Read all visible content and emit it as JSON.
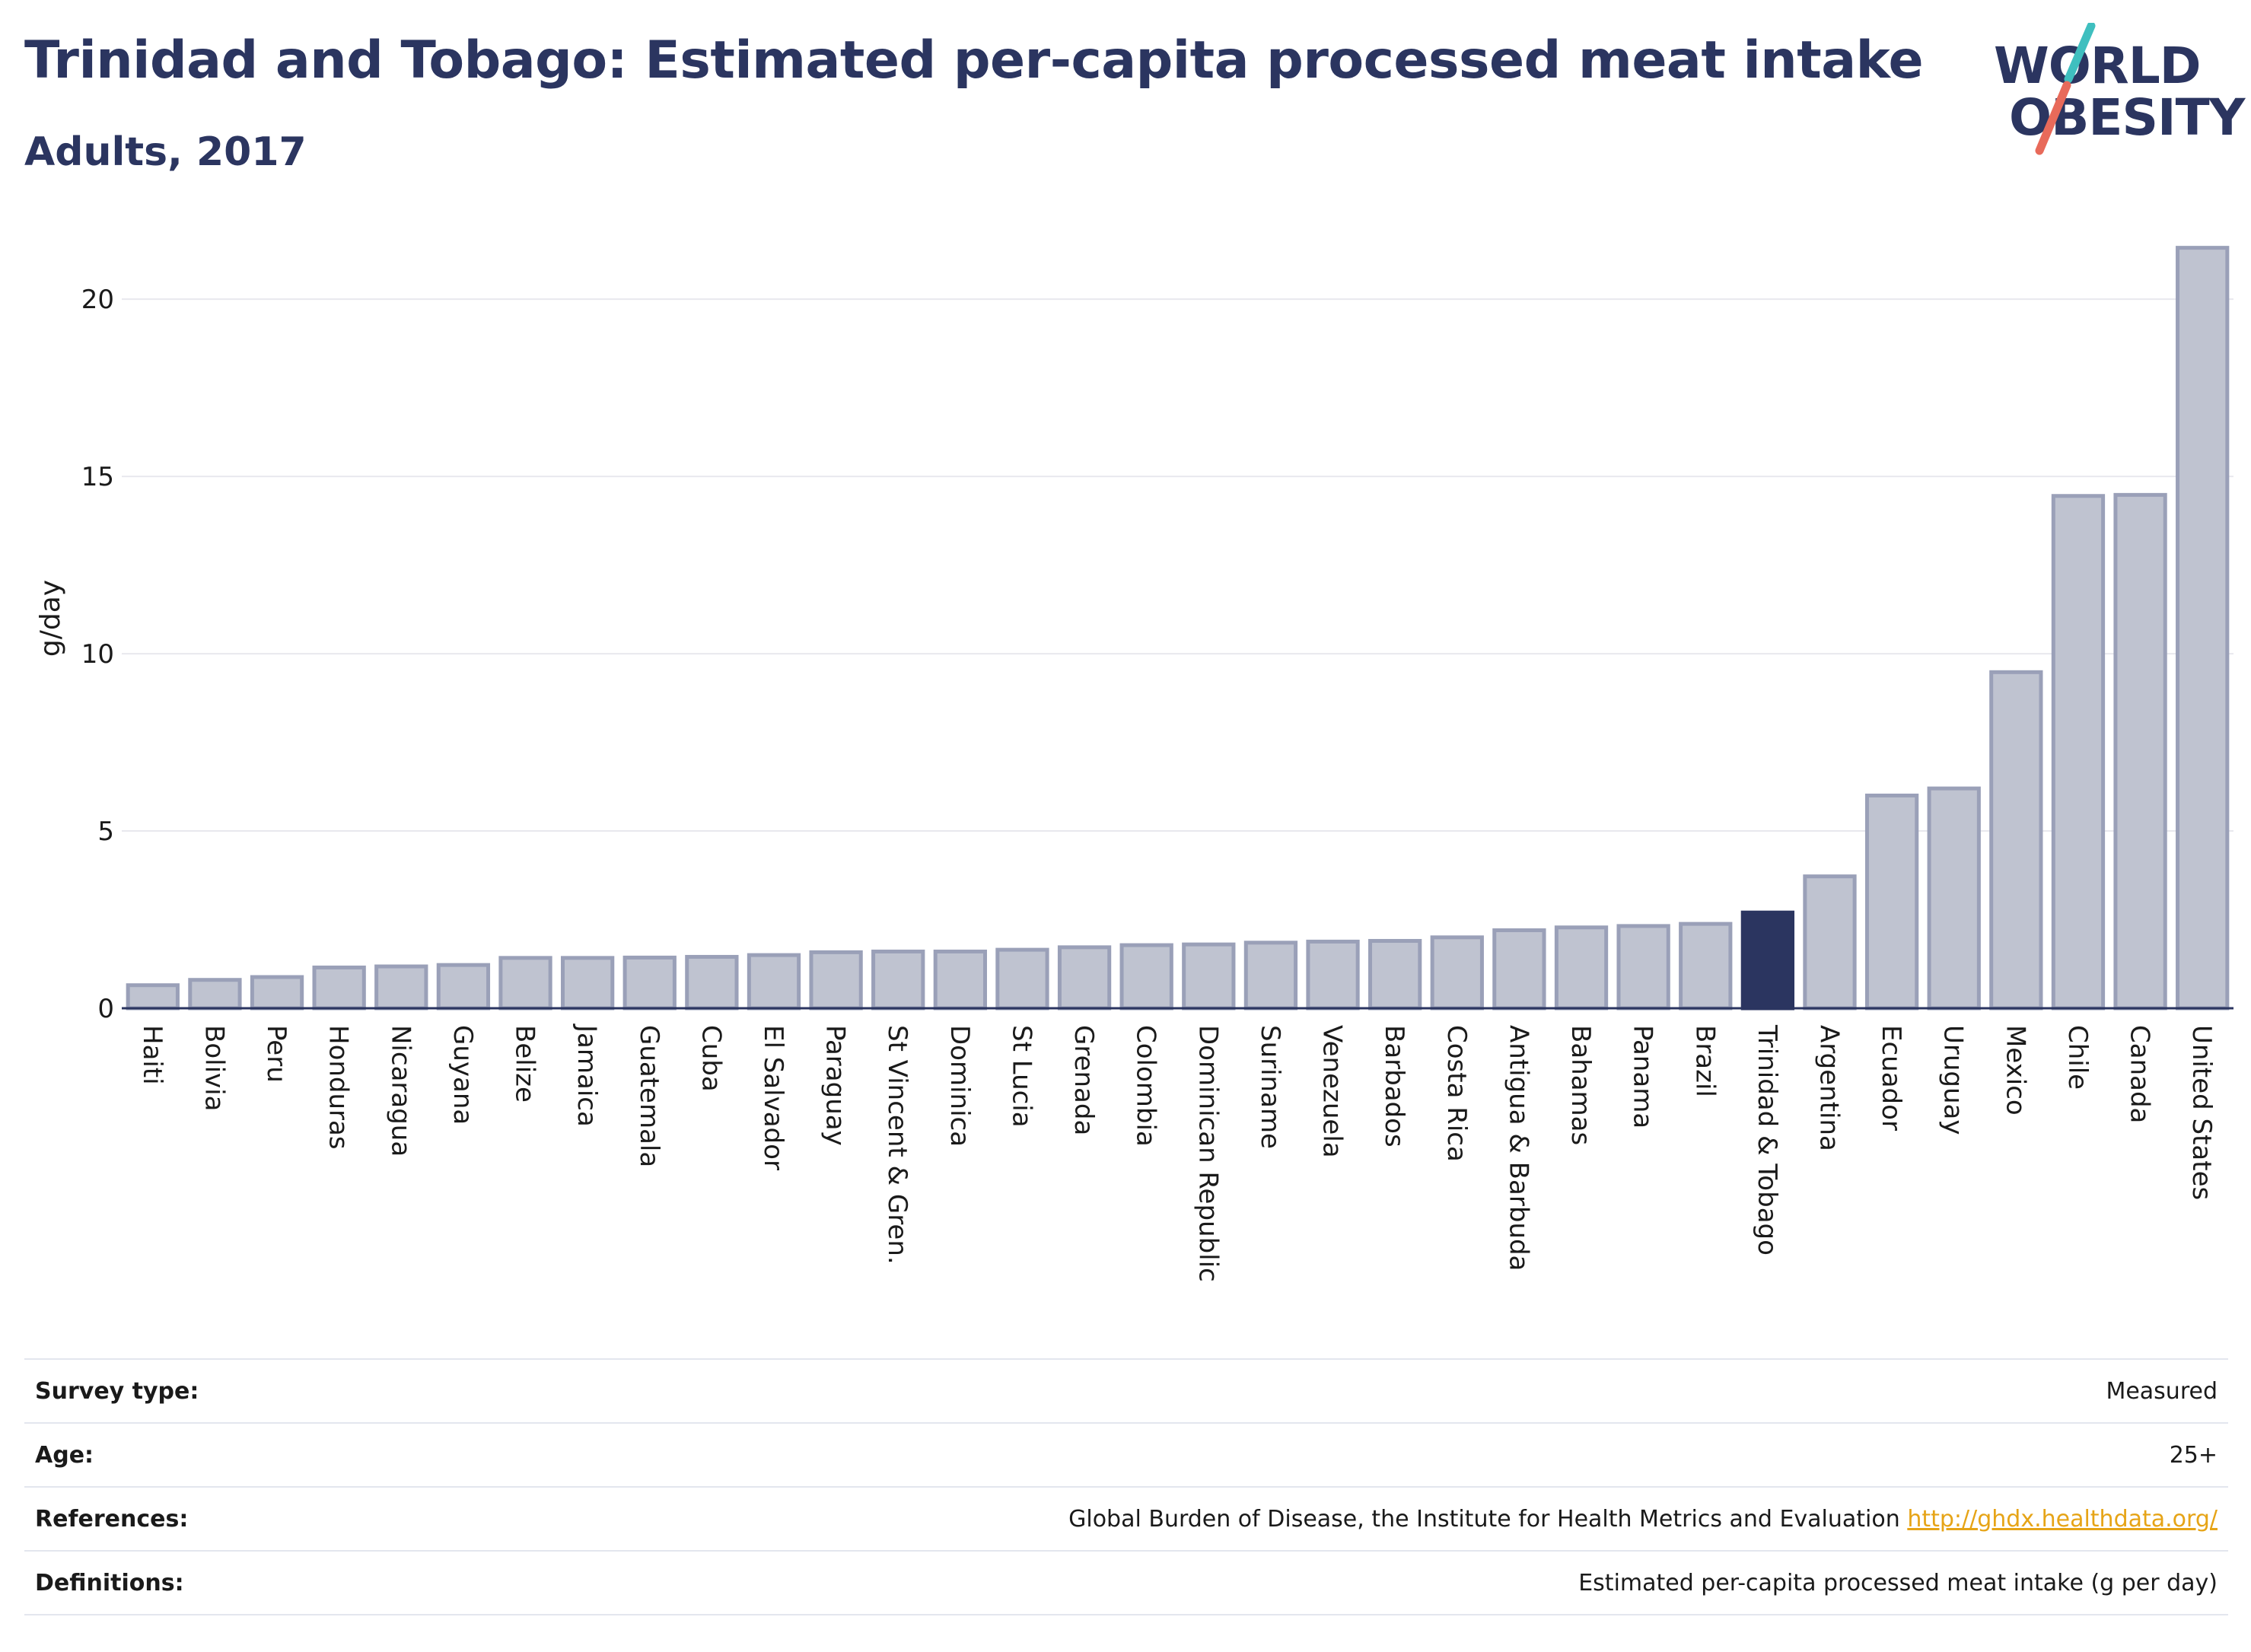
{
  "header": {
    "title": "Trinidad and Tobago: Estimated per-capita processed meat intake",
    "subtitle": "Adults, 2017"
  },
  "logo": {
    "line1": "WORLD",
    "line2": "OBESITY",
    "colors": {
      "text": "#2b3560",
      "stroke_top": "#3fbfbf",
      "stroke_bottom": "#e86a5a"
    }
  },
  "chart_data": {
    "type": "bar",
    "ylabel": "g/day",
    "xlabel": "",
    "ylim": [
      0,
      22
    ],
    "yticks": [
      0,
      5,
      10,
      15,
      20
    ],
    "grid": true,
    "highlight": "Trinidad & Tobago",
    "colors": {
      "bar": "#bfc3d0",
      "bar_edge": "#9aa0b8",
      "highlight": "#2b3560",
      "grid": "#e8e8ee"
    },
    "categories": [
      "Haiti",
      "Bolivia",
      "Peru",
      "Honduras",
      "Nicaragua",
      "Guyana",
      "Belize",
      "Jamaica",
      "Guatemala",
      "Cuba",
      "El Salvador",
      "Paraguay",
      "St Vincent & Gren.",
      "Dominica",
      "St Lucia",
      "Grenada",
      "Colombia",
      "Dominican Republic",
      "Suriname",
      "Venezuela",
      "Barbados",
      "Costa Rica",
      "Antigua & Barbuda",
      "Bahamas",
      "Panama",
      "Brazil",
      "Trinidad & Tobago",
      "Argentina",
      "Ecuador",
      "Uruguay",
      "Mexico",
      "Chile",
      "Canada",
      "United States"
    ],
    "values": [
      0.65,
      0.8,
      0.88,
      1.15,
      1.18,
      1.22,
      1.42,
      1.42,
      1.43,
      1.45,
      1.5,
      1.58,
      1.6,
      1.6,
      1.65,
      1.72,
      1.78,
      1.8,
      1.85,
      1.88,
      1.9,
      2.0,
      2.2,
      2.28,
      2.32,
      2.38,
      2.7,
      3.72,
      6.0,
      6.2,
      9.48,
      14.45,
      14.48,
      21.45
    ]
  },
  "info": [
    {
      "label": "Survey type:",
      "value": "Measured"
    },
    {
      "label": "Age:",
      "value": "25+"
    },
    {
      "label": "References:",
      "value": "Global Burden of Disease, the Institute for Health Metrics and Evaluation",
      "link": "http://ghdx.healthdata.org/"
    },
    {
      "label": "Definitions:",
      "value": "Estimated per-capita processed meat intake (g per day)"
    }
  ]
}
